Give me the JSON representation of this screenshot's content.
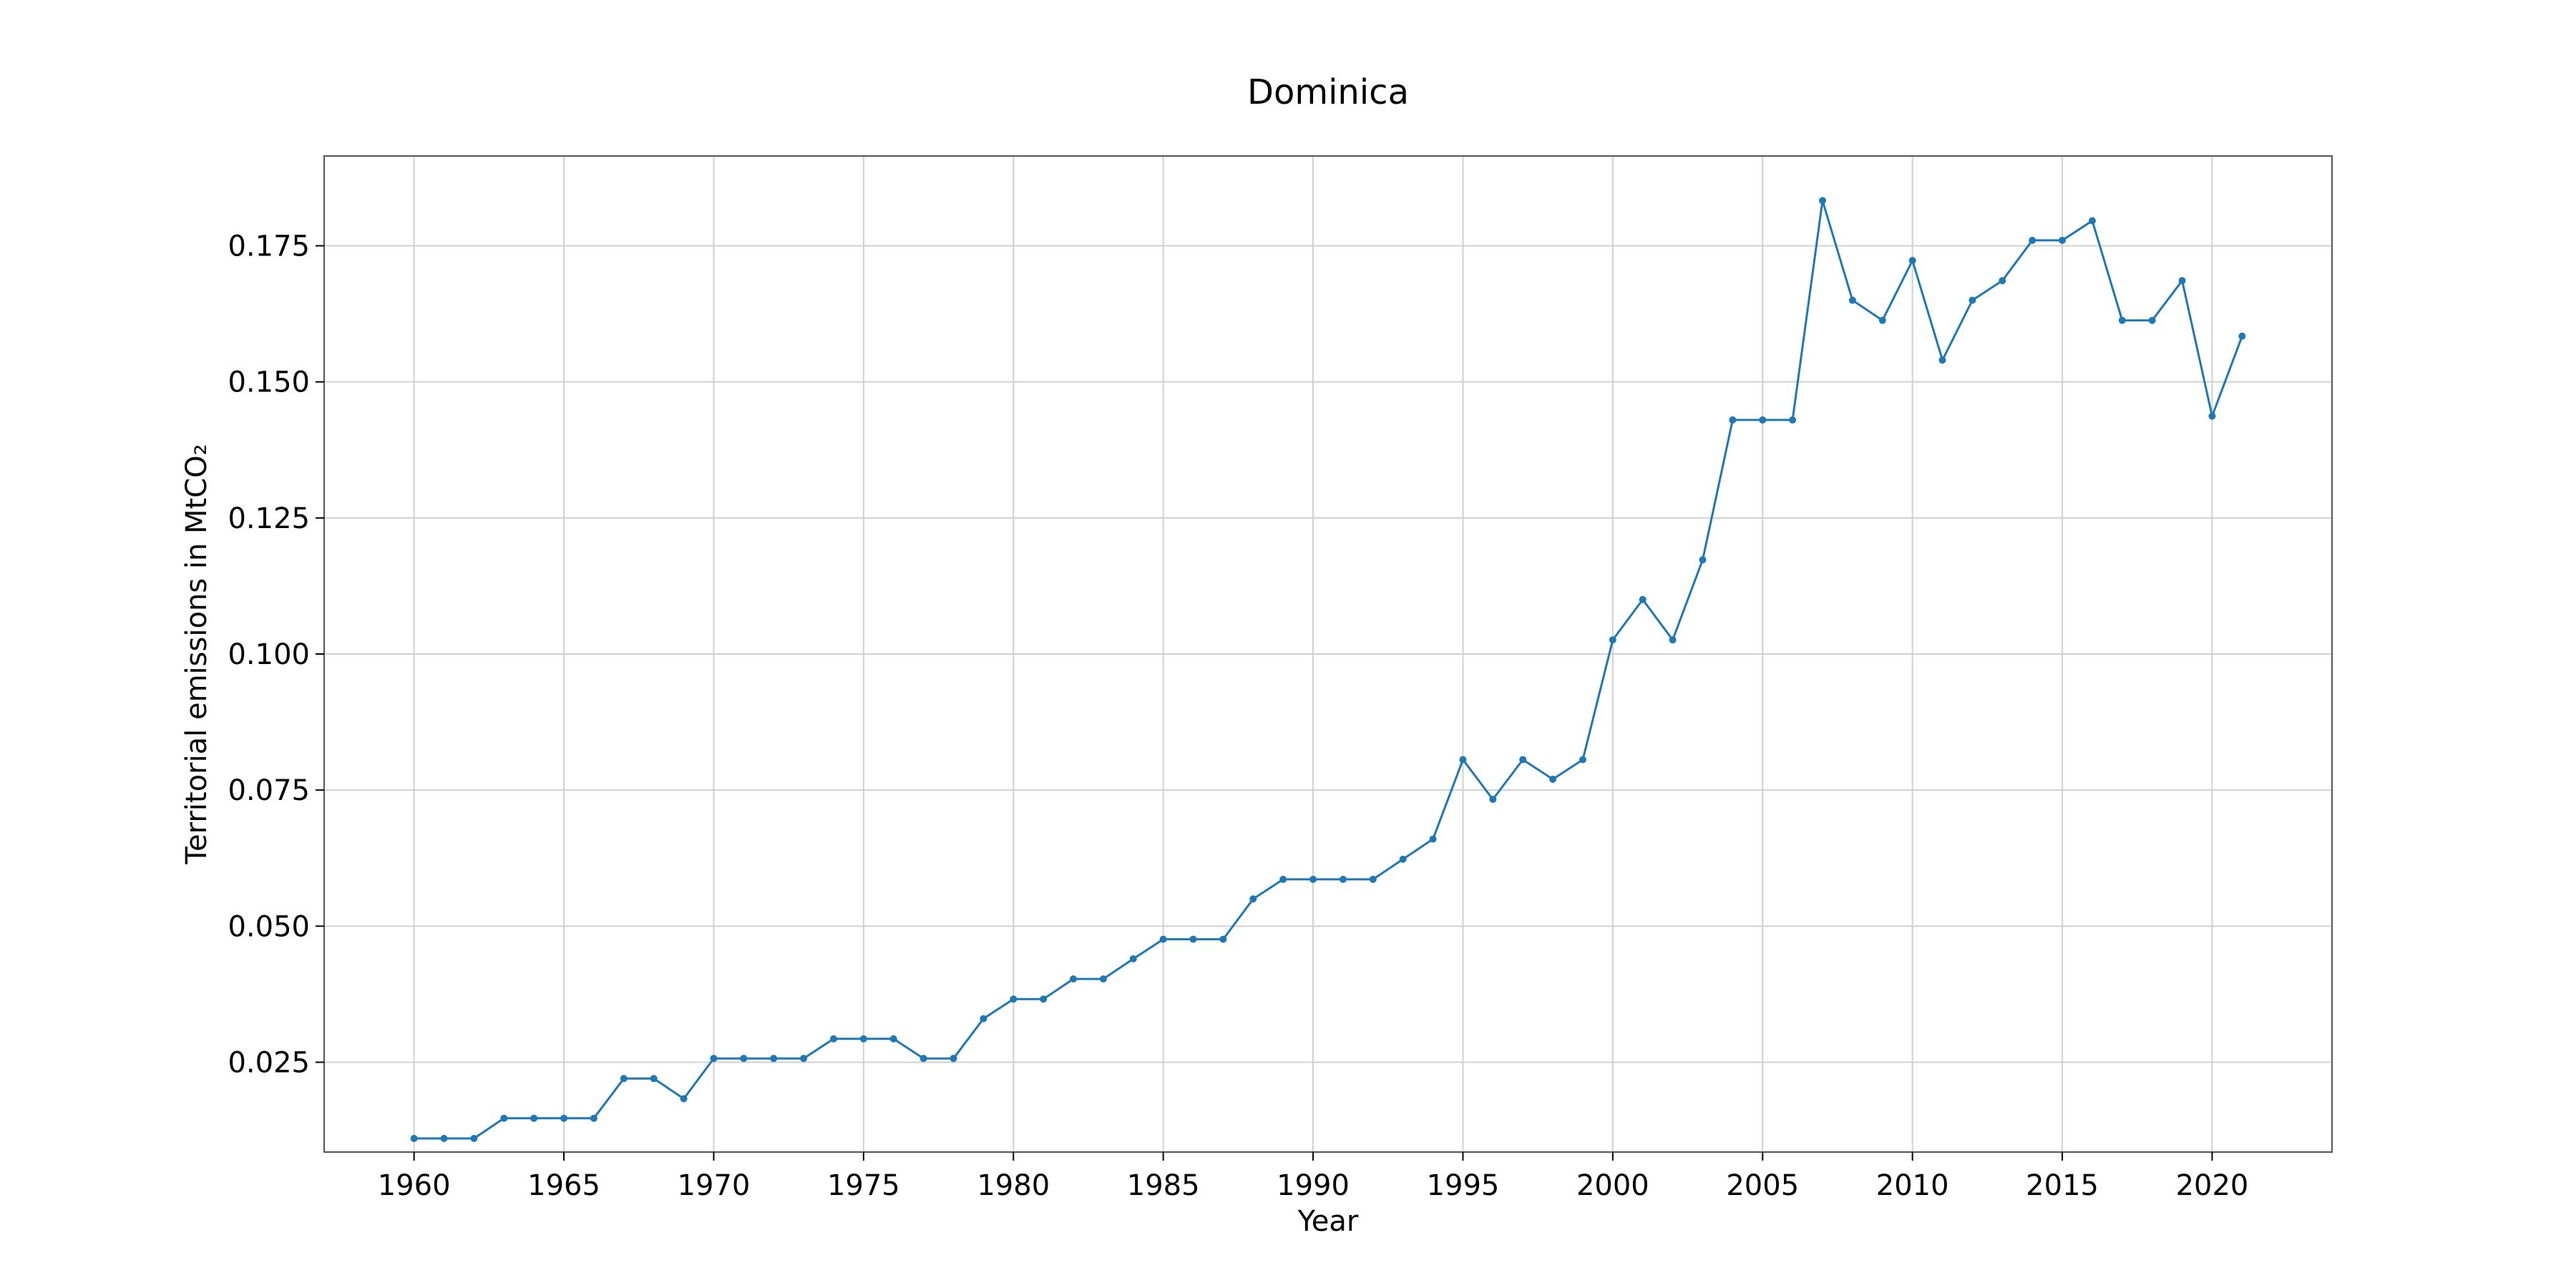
{
  "chart_data": {
    "type": "line",
    "title": "Dominica",
    "xlabel": "Year",
    "ylabel": "Territorial emissions in MtCO₂",
    "xlim": [
      1957,
      2024
    ],
    "ylim": [
      0.0085,
      0.1915
    ],
    "x_ticks": [
      1960,
      1965,
      1970,
      1975,
      1980,
      1985,
      1990,
      1995,
      2000,
      2005,
      2010,
      2015,
      2020
    ],
    "y_ticks": [
      0.025,
      0.05,
      0.075,
      0.1,
      0.125,
      0.15,
      0.175
    ],
    "y_tick_labels": [
      "0.025",
      "0.050",
      "0.075",
      "0.100",
      "0.125",
      "0.150",
      "0.175"
    ],
    "grid": true,
    "color": "#1f77b4",
    "series": [
      {
        "x": [
          1960,
          1961,
          1962,
          1963,
          1964,
          1965,
          1966,
          1967,
          1968,
          1969,
          1970,
          1971,
          1972,
          1973,
          1974,
          1975,
          1976,
          1977,
          1978,
          1979,
          1980,
          1981,
          1982,
          1983,
          1984,
          1985,
          1986,
          1987,
          1988,
          1989,
          1990,
          1991,
          1992,
          1993,
          1994,
          1995,
          1996,
          1997,
          1998,
          1999,
          2000,
          2001,
          2002,
          2003,
          2004,
          2005,
          2006,
          2007,
          2008,
          2009,
          2010,
          2011,
          2012,
          2013,
          2014,
          2015,
          2016,
          2017,
          2018,
          2019,
          2020,
          2021
        ],
        "values": [
          0.011,
          0.011,
          0.011,
          0.0147,
          0.0147,
          0.0147,
          0.0147,
          0.022,
          0.022,
          0.0183,
          0.0257,
          0.0257,
          0.0257,
          0.0257,
          0.0293,
          0.0293,
          0.0293,
          0.0257,
          0.0257,
          0.033,
          0.0366,
          0.0366,
          0.0403,
          0.0403,
          0.044,
          0.0476,
          0.0476,
          0.0476,
          0.055,
          0.0586,
          0.0586,
          0.0586,
          0.0586,
          0.0623,
          0.066,
          0.0806,
          0.0733,
          0.0806,
          0.077,
          0.0806,
          0.1026,
          0.11,
          0.1026,
          0.1173,
          0.143,
          0.143,
          0.143,
          0.1833,
          0.165,
          0.1613,
          0.1723,
          0.154,
          0.165,
          0.1686,
          0.176,
          0.176,
          0.1796,
          0.1613,
          0.1613,
          0.1686,
          0.1437,
          0.1584
        ]
      }
    ]
  }
}
